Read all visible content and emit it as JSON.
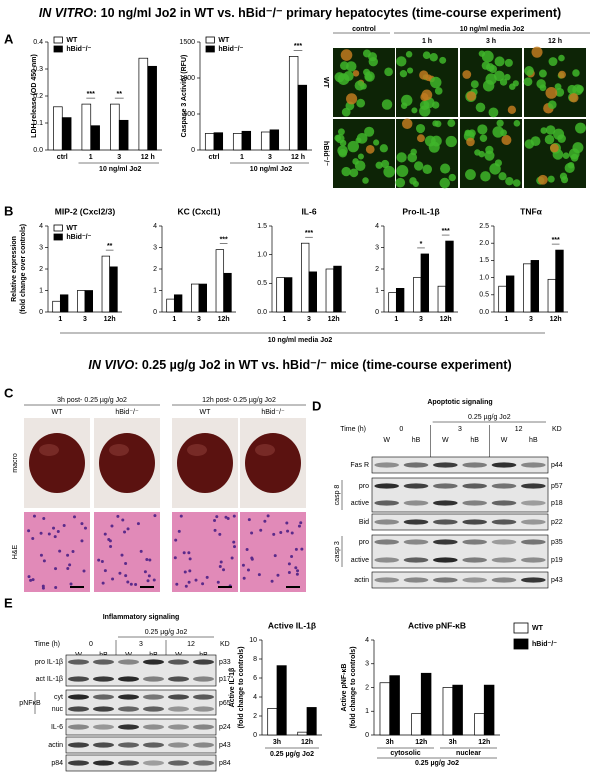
{
  "headings": {
    "in_vitro": {
      "em": "IN VITRO",
      "rest": ": 10 ng/ml Jo2 in WT vs. hBid⁻/⁻ primary hepatocytes (time-course experiment)"
    },
    "in_vivo": {
      "em": "IN VIVO",
      "rest": ": 0.25 µg/g Jo2 in WT vs. hBid⁻/⁻ mice (time-course experiment)"
    }
  },
  "panel_letters": [
    "A",
    "B",
    "C",
    "D",
    "E"
  ],
  "chart_data": [
    {
      "type": "bar",
      "ylabel": [
        "LDH release (OD 450 nm)"
      ],
      "categories": [
        "ctrl",
        "1",
        "3",
        "12 h"
      ],
      "xlabel": "10 ng/ml Jo2",
      "ylim": [
        0,
        0.4
      ],
      "yticks": [
        {
          "value": 0,
          "label": "0.0"
        },
        0.1,
        0.2,
        0.3,
        0.4
      ],
      "series": [
        {
          "name": "WT",
          "color": "#ffffff",
          "values": [
            0.16,
            0.17,
            0.17,
            0.34
          ]
        },
        {
          "name": "hBid⁻/⁻",
          "color": "#000000",
          "values": [
            0.12,
            0.09,
            0.11,
            0.31
          ]
        }
      ],
      "annotations": [
        null,
        "***",
        "**",
        null
      ]
    },
    {
      "type": "bar",
      "ylabel": [
        "Caspase 3 Activity (RFU)"
      ],
      "categories": [
        "ctrl",
        "1",
        "3",
        "12 h"
      ],
      "xlabel": "10 ng/ml Jo2",
      "ylim": [
        0,
        1500
      ],
      "yticks": [
        0,
        500,
        1000,
        1500
      ],
      "series": [
        {
          "name": "WT",
          "color": "#ffffff",
          "values": [
            230,
            230,
            250,
            1300
          ]
        },
        {
          "name": "hBid⁻/⁻",
          "color": "#000000",
          "values": [
            240,
            260,
            280,
            900
          ]
        }
      ],
      "annotations": [
        null,
        null,
        null,
        "***"
      ]
    },
    {
      "type": "bar",
      "title": "MIP-2 (Cxcl2/3)",
      "ylabel": [
        "Relative expression",
        "(fold change over controls)"
      ],
      "categories": [
        "1",
        "3",
        "12h"
      ],
      "ylim": [
        0,
        4
      ],
      "yticks": [
        0,
        1,
        2,
        3,
        4
      ],
      "series": [
        {
          "name": "WT",
          "color": "#ffffff",
          "values": [
            0.5,
            1.0,
            2.6
          ]
        },
        {
          "name": "hBid⁻/⁻",
          "color": "#000000",
          "values": [
            0.8,
            1.0,
            2.1
          ]
        }
      ],
      "annotations": [
        null,
        null,
        "**"
      ]
    },
    {
      "type": "bar",
      "title": "KC (Cxcl1)",
      "categories": [
        "1",
        "3",
        "12h"
      ],
      "ylim": [
        0,
        4
      ],
      "yticks": [
        0,
        1,
        2,
        3,
        4
      ],
      "series": [
        {
          "color": "#ffffff",
          "values": [
            0.6,
            1.3,
            2.9
          ]
        },
        {
          "color": "#000000",
          "values": [
            0.8,
            1.3,
            1.8
          ]
        }
      ],
      "annotations": [
        null,
        null,
        "***"
      ]
    },
    {
      "type": "bar",
      "title": "IL-6",
      "categories": [
        "1",
        "3",
        "12h"
      ],
      "ylim": [
        0,
        1.5
      ],
      "yticks": [
        {
          "value": 0,
          "label": "0.0"
        },
        0.5,
        {
          "value": 1,
          "label": "1.0"
        },
        1.5
      ],
      "series": [
        {
          "color": "#ffffff",
          "values": [
            0.6,
            1.2,
            0.75
          ]
        },
        {
          "color": "#000000",
          "values": [
            0.6,
            0.7,
            0.8
          ]
        }
      ],
      "annotations": [
        null,
        "***",
        null
      ]
    },
    {
      "type": "bar",
      "title": "Pro-IL-1β",
      "categories": [
        "1",
        "3",
        "12h"
      ],
      "ylim": [
        0,
        4
      ],
      "yticks": [
        0,
        1,
        2,
        3,
        4
      ],
      "series": [
        {
          "color": "#ffffff",
          "values": [
            0.9,
            1.6,
            1.2
          ]
        },
        {
          "color": "#000000",
          "values": [
            1.1,
            2.7,
            3.3
          ]
        }
      ],
      "annotations": [
        null,
        "*",
        "***"
      ]
    },
    {
      "type": "bar",
      "title": "TNFα",
      "categories": [
        "1",
        "3",
        "12h"
      ],
      "ylim": [
        0,
        2.5
      ],
      "yticks": [
        {
          "value": 0,
          "label": "0.0"
        },
        0.5,
        {
          "value": 1,
          "label": "1.0"
        },
        1.5,
        {
          "value": 2,
          "label": "2.0"
        },
        2.5
      ],
      "series": [
        {
          "color": "#ffffff",
          "values": [
            0.75,
            1.4,
            0.95
          ]
        },
        {
          "color": "#000000",
          "values": [
            1.05,
            1.5,
            1.8
          ]
        }
      ],
      "annotations": [
        null,
        null,
        "***"
      ]
    },
    {
      "type": "bar",
      "title": "Active IL-1β",
      "ylabel": [
        "Active IL-1β",
        "(fold change to controls)"
      ],
      "categories": [
        "3h",
        "12h"
      ],
      "xlabel": "0.25 µg/g Jo2",
      "ylim": [
        0,
        10
      ],
      "yticks": [
        0,
        2,
        4,
        6,
        8,
        10
      ],
      "series": [
        {
          "color": "#ffffff",
          "values": [
            2.8,
            0.3
          ]
        },
        {
          "color": "#000000",
          "values": [
            7.3,
            2.9
          ]
        }
      ]
    },
    {
      "type": "bar",
      "title": "Active pNF-κB",
      "ylabel": [
        "Active pNF-κB",
        "(fold change to controls)"
      ],
      "categories": [
        "3h",
        "12h",
        "3h",
        "12h"
      ],
      "group_labels": [
        "cytosolic",
        "nuclear"
      ],
      "xlabel": "0.25 µg/g Jo2",
      "ylim": [
        0,
        4
      ],
      "yticks": [
        0,
        1,
        2,
        3,
        4
      ],
      "series": [
        {
          "name": "WT",
          "color": "#ffffff",
          "values": [
            2.2,
            0.9,
            2.0,
            0.9
          ]
        },
        {
          "name": "hBid⁻/⁻",
          "color": "#000000",
          "values": [
            2.5,
            2.6,
            2.1,
            2.1
          ]
        }
      ]
    }
  ],
  "panel_b_xlabel": "10 ng/ml media Jo2",
  "micrographs_a": {
    "group": "10 ng/ml media Jo2",
    "columns": [
      "control",
      "1 h",
      "3 h",
      "12 h"
    ],
    "rows": [
      "WT",
      "hBid⁻/⁻"
    ]
  },
  "macro_c": {
    "timepoints": [
      "3h post- 0.25 µg/g Jo2",
      "12h post- 0.25 µg/g Jo2"
    ],
    "columns": [
      "WT",
      "hBid⁻/⁻",
      "WT",
      "hBid⁻/⁻"
    ],
    "rows": [
      "macro",
      "H&E"
    ]
  },
  "blot_d": {
    "title": "Apoptotic signaling",
    "treatment": "0.25 µg/g  Jo2",
    "time_label": "Time (h)",
    "times": [
      "0",
      "3",
      "12"
    ],
    "kd_label": "KD",
    "lanes": [
      "W",
      "hB",
      "W",
      "hB",
      "W",
      "hB"
    ],
    "rows": [
      "Fas R",
      "pro",
      "active",
      "Bid",
      "pro",
      "active",
      "actin"
    ],
    "groups": [
      "casp 8",
      "casp 3"
    ],
    "kd": [
      "p44",
      "p57",
      "p18",
      "p22",
      "p35",
      "p19",
      "p43"
    ]
  },
  "blot_e": {
    "title": "Inflammatory signaling",
    "treatment": "0.25 µg/g Jo2",
    "time_label": "Time (h)",
    "times": [
      "0",
      "3",
      "12"
    ],
    "kd_label": "KD",
    "lanes": [
      "W",
      "hB",
      "W",
      "hB",
      "W",
      "hB"
    ],
    "rows": [
      "pro IL-1β",
      "act IL-1β",
      "cyt",
      "nuc",
      "IL-6",
      "actin",
      "p84"
    ],
    "groups": [
      "pNFκB"
    ],
    "kd": [
      "p33",
      "p17",
      "p65",
      "p24",
      "p43",
      "p84"
    ]
  }
}
